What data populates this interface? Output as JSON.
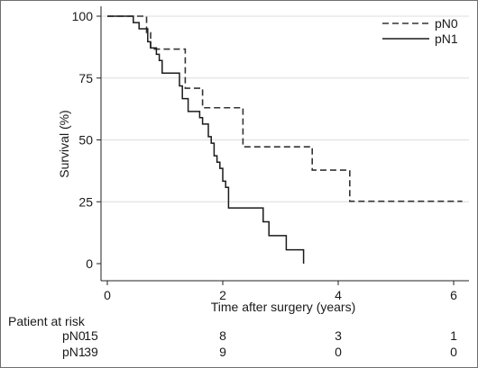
{
  "chart_data": {
    "type": "line",
    "title": "",
    "xlabel": "Time after surgery (years)",
    "ylabel": "Survival (%)",
    "xlim": [
      0,
      6.2
    ],
    "ylim": [
      0,
      100
    ],
    "xticks": [
      "0",
      "2",
      "4",
      "6"
    ],
    "yticks": [
      "0",
      "25",
      "50",
      "75",
      "100"
    ],
    "grid": "horizontal",
    "legend_position": "top-right",
    "series": [
      {
        "name": "pN0",
        "style": "dashed",
        "color": "#333333",
        "steps": [
          [
            0,
            100
          ],
          [
            0.68,
            93.3
          ],
          [
            0.75,
            86.7
          ],
          [
            1.35,
            70.9
          ],
          [
            1.65,
            63.0
          ],
          [
            2.35,
            47.2
          ],
          [
            3.55,
            37.8
          ],
          [
            4.2,
            25.2
          ],
          [
            6.15,
            25.2
          ]
        ]
      },
      {
        "name": "pN1",
        "style": "solid",
        "color": "#1a1a1a",
        "steps": [
          [
            0,
            100
          ],
          [
            0.45,
            97.4
          ],
          [
            0.55,
            94.9
          ],
          [
            0.7,
            89.7
          ],
          [
            0.75,
            87.2
          ],
          [
            0.85,
            84.6
          ],
          [
            0.9,
            82.1
          ],
          [
            0.95,
            77.0
          ],
          [
            1.25,
            71.8
          ],
          [
            1.3,
            66.7
          ],
          [
            1.4,
            61.5
          ],
          [
            1.6,
            59.0
          ],
          [
            1.65,
            56.4
          ],
          [
            1.75,
            51.3
          ],
          [
            1.8,
            48.7
          ],
          [
            1.85,
            43.6
          ],
          [
            1.9,
            41.0
          ],
          [
            1.95,
            38.5
          ],
          [
            2.0,
            33.3
          ],
          [
            2.05,
            30.8
          ],
          [
            2.1,
            22.5
          ],
          [
            2.7,
            16.9
          ],
          [
            2.8,
            11.3
          ],
          [
            3.1,
            5.6
          ],
          [
            3.4,
            0
          ]
        ]
      }
    ],
    "risk_table": {
      "title": "Patient at risk",
      "times": [
        0,
        2,
        4,
        6
      ],
      "rows": [
        {
          "label": "pN0",
          "counts": [
            "15",
            "8",
            "3",
            "1"
          ]
        },
        {
          "label": "pN1",
          "counts": [
            "39",
            "9",
            "0",
            "0"
          ]
        }
      ]
    }
  }
}
